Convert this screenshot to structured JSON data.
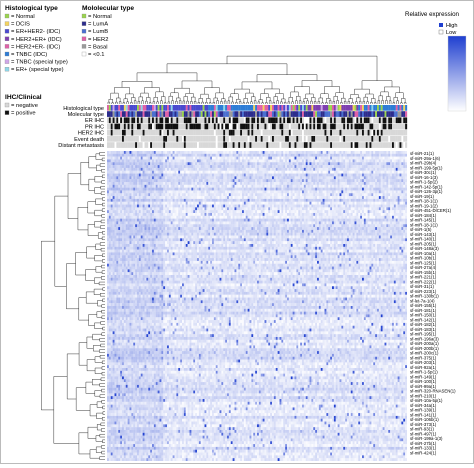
{
  "legend": {
    "histological": {
      "title": "Histological type",
      "items": [
        {
          "label": "= Normal",
          "color": "#9ad44e"
        },
        {
          "label": "= DCIS",
          "color": "#f4d35e"
        },
        {
          "label": "= ER+HER2- (IDC)",
          "color": "#4a4acf"
        },
        {
          "label": "= HER2+ER+ (IDC)",
          "color": "#7e3fb0"
        },
        {
          "label": "= HER2+ER- (IDC)",
          "color": "#e061a8"
        },
        {
          "label": "= TNBC (IDC)",
          "color": "#2e7dd6"
        },
        {
          "label": "= TNBC (special type)",
          "color": "#cfa6e8"
        },
        {
          "label": "= ER+ (special type)",
          "color": "#8fd7e8"
        }
      ]
    },
    "molecular": {
      "title": "Mololecular type",
      "items": [
        {
          "label": "= Normal",
          "color": "#9ad44e"
        },
        {
          "label": "= LumA",
          "color": "#2c2c8c"
        },
        {
          "label": "= LumB",
          "color": "#4a6fd0"
        },
        {
          "label": "= HER2",
          "color": "#e061a8"
        },
        {
          "label": "= Basal",
          "color": "#9a9a9a"
        },
        {
          "label": "= <0.1",
          "color": "#ffffff"
        }
      ]
    },
    "ihc": {
      "title": "IHC/Clinical",
      "items": [
        {
          "label": "= negative",
          "color": "#d8d8d8"
        },
        {
          "label": "= positive",
          "color": "#111111"
        }
      ]
    },
    "expression": {
      "title": "Relative expression",
      "high": "High",
      "low": "Low",
      "high_color": "#1f3fd0",
      "low_color": "#ffffff"
    }
  },
  "tracks": [
    "Histological type",
    "Molecular type",
    "ER IHC",
    "PR IHC",
    "HER2 IHC",
    "Event death",
    "Distant metastasis"
  ],
  "chart_data": {
    "type": "heatmap",
    "title": "",
    "xlabel": "",
    "ylabel": "",
    "row_labels": [
      "sf-miR-21(1)",
      "sf-miR-29a-1(6)",
      "sf-miR-29b(4)",
      "sf-miR-199-5p(1)",
      "sf-miR-30c(1)",
      "sf-miR-16-1(3)",
      "sf-miR-1-5p(2)",
      "sf-miR-142-5p(1)",
      "sf-miR-126-3p(1)",
      "sf-miR-19(1)",
      "sf-miR-18-1(1)",
      "sf-miR-19-1(2)",
      "sf-miR-451-DICER(1)",
      "sf-miR-184(1)",
      "sf-miR-145(1)",
      "sf-miR-18-1(1)",
      "sf-miR-1(5)",
      "sf-miR-143(1)",
      "sf-miR-140(1)",
      "sf-miR-205(1)",
      "sf-miR-148a(3)",
      "sf-miR-10a(1)",
      "sf-miR-10b(1)",
      "sf-miR-125(1)",
      "sf-miR-27a(4)",
      "sf-miR-15b(1)",
      "sf-miR-221(1)",
      "sf-miR-222(1)",
      "sf-miR-31(1)",
      "sf-miR-223(1)",
      "sf-miR-130b(1)",
      "sf-let-7a-1(4)",
      "sf-miR-155(1)",
      "sf-miR-181(1)",
      "sf-miR-150(1)",
      "sf-miR-142(1)",
      "sf-miR-182(1)",
      "sf-miR-183(1)",
      "sf-miR-195(1)",
      "sf-miR-196a(3)",
      "sf-miR-200a(1)",
      "sf-miR-200b(1)",
      "sf-miR-200c(1)",
      "sf-miR-375(1)",
      "sf-miR-203(1)",
      "sf-miR-92a(1)",
      "sf-miR-1-5p(1)",
      "sf-miR-149(1)",
      "sf-miR-100(1)",
      "sf-miR-99a(1)",
      "sf-miR-320-RNASEN(1)",
      "sf-miR-210(1)",
      "sf-miR-10a-5p(1)",
      "sf-miR-34a(1)",
      "sf-miR-139(1)",
      "sf-miR-141(1)",
      "sf-miR-106b(1)",
      "sf-miR-373(1)",
      "sf-miR-93(1)",
      "sf-miR-497(1)",
      "sf-miR-199a-1(3)",
      "sf-miR-27b(1)",
      "sf-miR-133(1)",
      "sf-miR-424(1)"
    ],
    "n_columns": 160,
    "color_scale": {
      "low": "#ffffff",
      "high": "#1f3fd0"
    },
    "legend_placement": "top-right"
  }
}
